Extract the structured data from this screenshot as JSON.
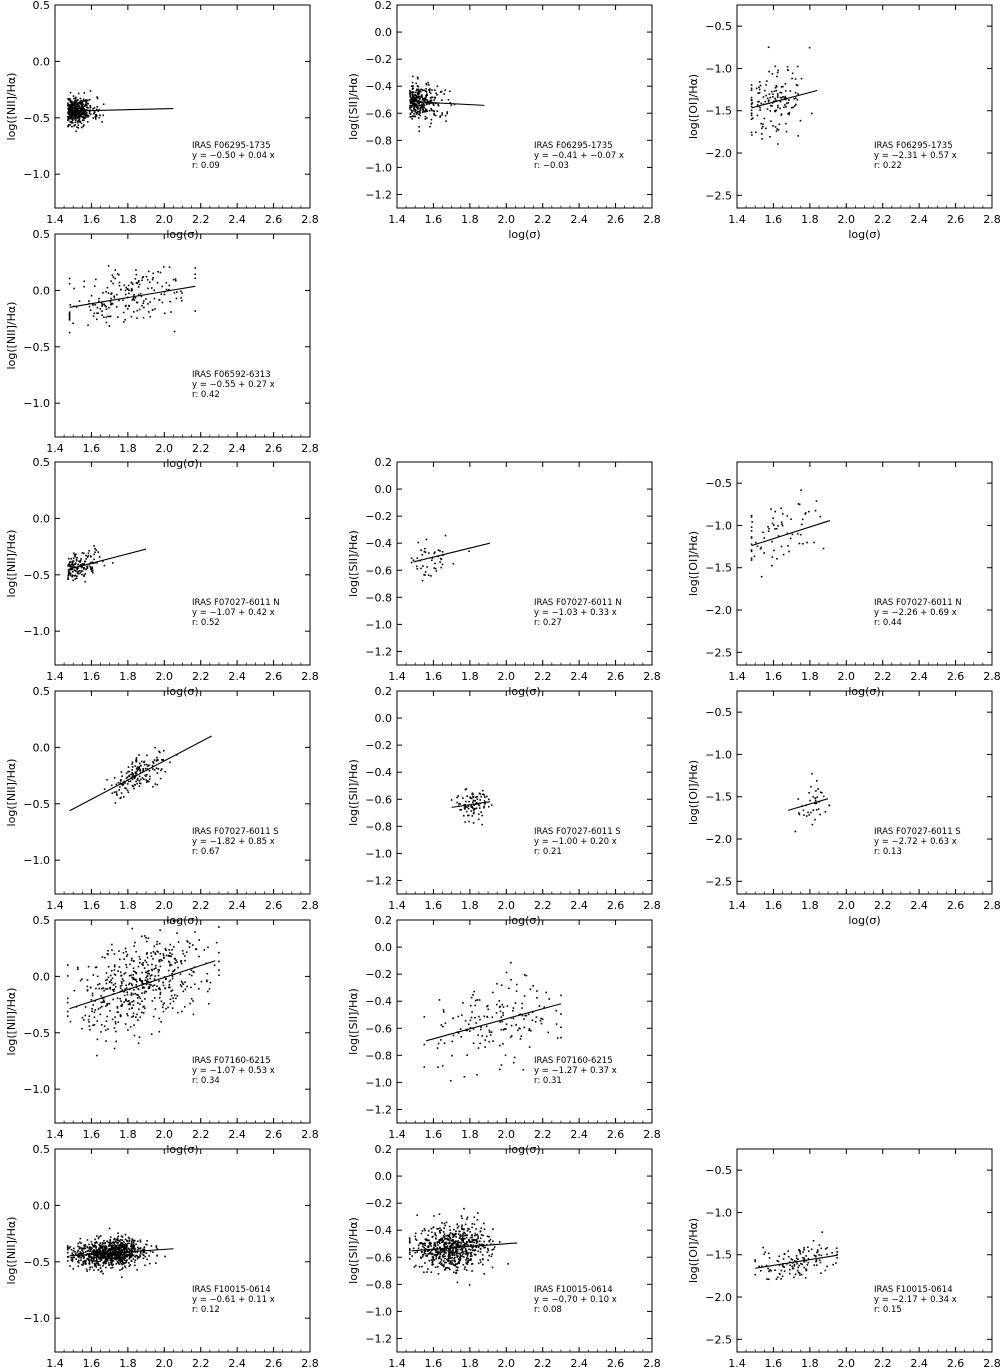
{
  "figure": {
    "axis_labels": {
      "x": "log(σ)",
      "y_nii": "log([NII]/Hα)",
      "y_sii": "log([SII]/Hα)",
      "y_oi": "log([OI]/Hα)"
    },
    "colors": {
      "axes": "#000000",
      "points": "#000000",
      "background": "#ffffff"
    }
  },
  "chart_data": [
    {
      "type": "scatter",
      "row": 0,
      "col": 0,
      "ylabel": "log([NII]/Hα)",
      "xlabel": "log(σ)",
      "xlim": [
        1.4,
        2.8
      ],
      "ylim": [
        -1.3,
        0.5
      ],
      "yticks": [
        0.5,
        0.0,
        -0.5,
        -1.0
      ],
      "xticks": [
        1.4,
        1.6,
        1.8,
        2.0,
        2.2,
        2.4,
        2.6,
        2.8
      ],
      "name": "IRAS F06295-1735",
      "fit": {
        "intercept": -0.5,
        "slope": 0.04,
        "r": 0.09,
        "x_range": [
          1.49,
          2.05
        ]
      },
      "annotation": [
        "IRAS F06295-1735",
        "y =  −0.50 +  0.04  x",
        "r:   0.09"
      ],
      "points": {
        "n": 420,
        "x_mean": 1.55,
        "x_sd": 0.07,
        "x_min": 1.47,
        "x_max": 2.05,
        "y_sd": 0.06,
        "skew": true,
        "seed": 11
      }
    },
    {
      "type": "scatter",
      "row": 0,
      "col": 1,
      "ylabel": "log([SII]/Hα)",
      "xlabel": "log(σ)",
      "xlim": [
        1.4,
        2.8
      ],
      "ylim": [
        -1.3,
        0.2
      ],
      "yticks": [
        0.2,
        0.0,
        -0.2,
        -0.4,
        -0.6,
        -0.8,
        -1.0,
        -1.2
      ],
      "xticks": [
        1.4,
        1.6,
        1.8,
        2.0,
        2.2,
        2.4,
        2.6,
        2.8
      ],
      "name": "IRAS F06295-1735",
      "fit": {
        "intercept": -0.41,
        "slope": -0.07,
        "r": -0.03,
        "x_range": [
          1.48,
          1.88
        ]
      },
      "annotation": [
        "IRAS F06295-1735",
        "y =  −0.41 +  −0.07  x",
        "r:   −0.03"
      ],
      "points": {
        "n": 300,
        "x_mean": 1.56,
        "x_sd": 0.08,
        "x_min": 1.47,
        "x_max": 1.88,
        "y_sd": 0.07,
        "skew": true,
        "seed": 12
      }
    },
    {
      "type": "scatter",
      "row": 0,
      "col": 2,
      "ylabel": "log([OI]/Hα)",
      "xlabel": "log(σ)",
      "xlim": [
        1.4,
        2.8
      ],
      "ylim": [
        -2.65,
        -0.25
      ],
      "yticks": [
        -0.5,
        -1.0,
        -1.5,
        -2.0,
        -2.5
      ],
      "xticks": [
        1.4,
        1.6,
        1.8,
        2.0,
        2.2,
        2.4,
        2.6,
        2.8
      ],
      "name": "IRAS F06295-1735",
      "fit": {
        "intercept": -2.31,
        "slope": 0.57,
        "r": 0.22,
        "x_range": [
          1.48,
          1.84
        ]
      },
      "annotation": [
        "IRAS F06295-1735",
        "y =  −2.31 +  0.57  x",
        "r:   0.22"
      ],
      "points": {
        "n": 150,
        "x_mean": 1.6,
        "x_sd": 0.09,
        "x_min": 1.48,
        "x_max": 1.85,
        "y_sd": 0.2,
        "skew": false,
        "seed": 13
      }
    },
    {
      "type": "scatter",
      "row": 1,
      "col": 0,
      "ylabel": "log([NII]/Hα)",
      "xlabel": "log(σ)",
      "xlim": [
        1.4,
        2.8
      ],
      "ylim": [
        -1.3,
        0.5
      ],
      "yticks": [
        0.5,
        0.0,
        -0.5,
        -1.0
      ],
      "xticks": [
        1.4,
        1.6,
        1.8,
        2.0,
        2.2,
        2.4,
        2.6,
        2.8
      ],
      "name": "IRAS F06592-6313",
      "fit": {
        "intercept": -0.55,
        "slope": 0.27,
        "r": 0.42,
        "x_range": [
          1.48,
          2.17
        ]
      },
      "annotation": [
        "IRAS F06592-6313",
        "y =  −0.55 +  0.27  x",
        "r:   0.42"
      ],
      "points": {
        "n": 200,
        "x_mean": 1.8,
        "x_sd": 0.18,
        "x_min": 1.48,
        "x_max": 2.17,
        "y_sd": 0.12,
        "skew": false,
        "seed": 21
      }
    },
    {
      "type": "scatter",
      "row": 2,
      "col": 0,
      "ylabel": "log([NII]/Hα)",
      "xlabel": "log(σ)",
      "xlim": [
        1.4,
        2.8
      ],
      "ylim": [
        -1.3,
        0.5
      ],
      "yticks": [
        0.5,
        0.0,
        -0.5,
        -1.0
      ],
      "xticks": [
        1.4,
        1.6,
        1.8,
        2.0,
        2.2,
        2.4,
        2.6,
        2.8
      ],
      "name": "IRAS F07027-6011 N",
      "fit": {
        "intercept": -1.07,
        "slope": 0.42,
        "r": 0.52,
        "x_range": [
          1.48,
          1.9
        ]
      },
      "annotation": [
        "IRAS F07027-6011 N",
        "y =  −1.07 +  0.42  x",
        "r:   0.52"
      ],
      "points": {
        "n": 150,
        "x_mean": 1.58,
        "x_sd": 0.09,
        "x_min": 1.47,
        "x_max": 1.9,
        "y_sd": 0.06,
        "skew": true,
        "seed": 31
      }
    },
    {
      "type": "scatter",
      "row": 2,
      "col": 1,
      "ylabel": "log([SII]/Hα)",
      "xlabel": "log(σ)",
      "xlim": [
        1.4,
        2.8
      ],
      "ylim": [
        -1.3,
        0.2
      ],
      "yticks": [
        0.2,
        0.0,
        -0.2,
        -0.4,
        -0.6,
        -0.8,
        -1.0,
        -1.2
      ],
      "xticks": [
        1.4,
        1.6,
        1.8,
        2.0,
        2.2,
        2.4,
        2.6,
        2.8
      ],
      "name": "IRAS F07027-6011 N",
      "fit": {
        "intercept": -1.03,
        "slope": 0.33,
        "r": 0.27,
        "x_range": [
          1.49,
          1.91
        ]
      },
      "annotation": [
        "IRAS F07027-6011 N",
        "y =  −1.03 +  0.33  x",
        "r:   0.27"
      ],
      "points": {
        "n": 45,
        "x_mean": 1.58,
        "x_sd": 0.08,
        "x_min": 1.48,
        "x_max": 1.92,
        "y_sd": 0.07,
        "skew": false,
        "seed": 32
      }
    },
    {
      "type": "scatter",
      "row": 2,
      "col": 2,
      "ylabel": "log([OI]/Hα)",
      "xlabel": "log(σ)",
      "xlim": [
        1.4,
        2.8
      ],
      "ylim": [
        -2.65,
        -0.25
      ],
      "yticks": [
        -0.5,
        -1.0,
        -1.5,
        -2.0,
        -2.5
      ],
      "xticks": [
        1.4,
        1.6,
        1.8,
        2.0,
        2.2,
        2.4,
        2.6,
        2.8
      ],
      "name": "IRAS F07027-6011 N",
      "fit": {
        "intercept": -2.26,
        "slope": 0.69,
        "r": 0.44,
        "x_range": [
          1.48,
          1.91
        ]
      },
      "annotation": [
        "IRAS F07027-6011 N",
        "y =  −2.26 +  0.69  x",
        "r:   0.44"
      ],
      "points": {
        "n": 70,
        "x_mean": 1.62,
        "x_sd": 0.11,
        "x_min": 1.48,
        "x_max": 1.92,
        "y_sd": 0.18,
        "skew": false,
        "seed": 33
      }
    },
    {
      "type": "scatter",
      "row": 3,
      "col": 0,
      "ylabel": "log([NII]/Hα)",
      "xlabel": "log(σ)",
      "xlim": [
        1.4,
        2.8
      ],
      "ylim": [
        -1.3,
        0.5
      ],
      "yticks": [
        0.5,
        0.0,
        -0.5,
        -1.0
      ],
      "xticks": [
        1.4,
        1.6,
        1.8,
        2.0,
        2.2,
        2.4,
        2.6,
        2.8
      ],
      "name": "IRAS F07027-6011 S",
      "fit": {
        "intercept": -1.82,
        "slope": 0.85,
        "r": 0.67,
        "x_range": [
          1.48,
          2.26
        ]
      },
      "annotation": [
        "IRAS F07027-6011 S",
        "y =  −1.82 +  0.85  x",
        "r:   0.67"
      ],
      "points": {
        "n": 160,
        "x_mean": 1.86,
        "x_sd": 0.08,
        "x_min": 1.48,
        "x_max": 2.26,
        "y_sd": 0.07,
        "skew": false,
        "seed": 41
      }
    },
    {
      "type": "scatter",
      "row": 3,
      "col": 1,
      "ylabel": "log([SII]/Hα)",
      "xlabel": "log(σ)",
      "xlim": [
        1.4,
        2.8
      ],
      "ylim": [
        -1.3,
        0.2
      ],
      "yticks": [
        0.2,
        0.0,
        -0.2,
        -0.4,
        -0.6,
        -0.8,
        -1.0,
        -1.2
      ],
      "xticks": [
        1.4,
        1.6,
        1.8,
        2.0,
        2.2,
        2.4,
        2.6,
        2.8
      ],
      "name": "IRAS F07027-6011 S",
      "fit": {
        "intercept": -1.0,
        "slope": 0.2,
        "r": 0.21,
        "x_range": [
          1.7,
          1.91
        ]
      },
      "annotation": [
        "IRAS F07027-6011 S",
        "y =  −1.00 +  0.20  x",
        "r:   0.21"
      ],
      "points": {
        "n": 90,
        "x_mean": 1.81,
        "x_sd": 0.05,
        "x_min": 1.7,
        "x_max": 1.92,
        "y_sd": 0.06,
        "skew": false,
        "seed": 42
      }
    },
    {
      "type": "scatter",
      "row": 3,
      "col": 2,
      "ylabel": "log([OI]/Hα)",
      "xlabel": "log(σ)",
      "xlim": [
        1.4,
        2.8
      ],
      "ylim": [
        -2.65,
        -0.25
      ],
      "yticks": [
        -0.5,
        -1.0,
        -1.5,
        -2.0,
        -2.5
      ],
      "xticks": [
        1.4,
        1.6,
        1.8,
        2.0,
        2.2,
        2.4,
        2.6,
        2.8
      ],
      "name": "IRAS F07027-6011 S",
      "fit": {
        "intercept": -2.72,
        "slope": 0.63,
        "r": 0.13,
        "x_range": [
          1.68,
          1.9
        ]
      },
      "annotation": [
        "IRAS F07027-6011 S",
        "y =  −2.72 +  0.63  x",
        "r:   0.13"
      ],
      "points": {
        "n": 40,
        "x_mean": 1.8,
        "x_sd": 0.05,
        "x_min": 1.68,
        "x_max": 1.91,
        "y_sd": 0.15,
        "skew": false,
        "seed": 43
      }
    },
    {
      "type": "scatter",
      "row": 4,
      "col": 0,
      "ylabel": "log([NII]/Hα)",
      "xlabel": "log(σ)",
      "xlim": [
        1.4,
        2.8
      ],
      "ylim": [
        -1.3,
        0.5
      ],
      "yticks": [
        0.5,
        0.0,
        -0.5,
        -1.0
      ],
      "xticks": [
        1.4,
        1.6,
        1.8,
        2.0,
        2.2,
        2.4,
        2.6,
        2.8
      ],
      "name": "IRAS F07160-6215",
      "fit": {
        "intercept": -1.07,
        "slope": 0.53,
        "r": 0.34,
        "x_range": [
          1.48,
          2.28
        ]
      },
      "annotation": [
        "IRAS F07160-6215",
        "y =  −1.07 +  0.53  x",
        "r:   0.34"
      ],
      "points": {
        "n": 520,
        "x_mean": 1.88,
        "x_sd": 0.18,
        "x_min": 1.47,
        "x_max": 2.3,
        "y_sd": 0.2,
        "skew": false,
        "seed": 51
      }
    },
    {
      "type": "scatter",
      "row": 4,
      "col": 1,
      "ylabel": "log([SII]/Hα)",
      "xlabel": "log(σ)",
      "xlim": [
        1.4,
        2.8
      ],
      "ylim": [
        -1.3,
        0.2
      ],
      "yticks": [
        0.2,
        0.0,
        -0.2,
        -0.4,
        -0.6,
        -0.8,
        -1.0,
        -1.2
      ],
      "xticks": [
        1.4,
        1.6,
        1.8,
        2.0,
        2.2,
        2.4,
        2.6,
        2.8
      ],
      "name": "IRAS F07160-6215",
      "fit": {
        "intercept": -1.27,
        "slope": 0.37,
        "r": 0.31,
        "x_range": [
          1.56,
          2.3
        ]
      },
      "annotation": [
        "IRAS F07160-6215",
        "y =  −1.27 +  0.37  x",
        "r:   0.31"
      ],
      "points": {
        "n": 170,
        "x_mean": 1.95,
        "x_sd": 0.17,
        "x_min": 1.55,
        "x_max": 2.3,
        "y_sd": 0.17,
        "skew": false,
        "seed": 52
      }
    },
    {
      "type": "scatter",
      "row": 5,
      "col": 0,
      "ylabel": "log([NII]/Hα)",
      "xlabel": "log(σ)",
      "xlim": [
        1.4,
        2.8
      ],
      "ylim": [
        -1.3,
        0.5
      ],
      "yticks": [
        0.5,
        0.0,
        -0.5,
        -1.0
      ],
      "xticks": [
        1.4,
        1.6,
        1.8,
        2.0,
        2.2,
        2.4,
        2.6,
        2.8
      ],
      "name": "IRAS F10015-0614",
      "fit": {
        "intercept": -0.61,
        "slope": 0.11,
        "r": 0.12,
        "x_range": [
          1.48,
          2.05
        ]
      },
      "annotation": [
        "IRAS F10015-0614",
        "y =  −0.61 +  0.11  x",
        "r:   0.12"
      ],
      "points": {
        "n": 900,
        "x_mean": 1.7,
        "x_sd": 0.1,
        "x_min": 1.47,
        "x_max": 2.05,
        "y_sd": 0.06,
        "skew": false,
        "seed": 61
      }
    },
    {
      "type": "scatter",
      "row": 5,
      "col": 1,
      "ylabel": "log([SII]/Hα)",
      "xlabel": "log(σ)",
      "xlim": [
        1.4,
        2.8
      ],
      "ylim": [
        -1.3,
        0.2
      ],
      "yticks": [
        0.2,
        0.0,
        -0.2,
        -0.4,
        -0.6,
        -0.8,
        -1.0,
        -1.2
      ],
      "xticks": [
        1.4,
        1.6,
        1.8,
        2.0,
        2.2,
        2.4,
        2.6,
        2.8
      ],
      "name": "IRAS F10015-0614",
      "fit": {
        "intercept": -0.7,
        "slope": 0.1,
        "r": 0.08,
        "x_range": [
          1.48,
          2.06
        ]
      },
      "annotation": [
        "IRAS F10015-0614",
        "y =  −0.70 +  0.10  x",
        "r:   0.08"
      ],
      "points": {
        "n": 700,
        "x_mean": 1.7,
        "x_sd": 0.1,
        "x_min": 1.47,
        "x_max": 2.06,
        "y_sd": 0.08,
        "skew": false,
        "seed": 62
      }
    },
    {
      "type": "scatter",
      "row": 5,
      "col": 2,
      "ylabel": "log([OI]/Hα)",
      "xlabel": "log(σ)",
      "xlim": [
        1.4,
        2.8
      ],
      "ylim": [
        -2.65,
        -0.25
      ],
      "yticks": [
        -0.5,
        -1.0,
        -1.5,
        -2.0,
        -2.5
      ],
      "xticks": [
        1.4,
        1.6,
        1.8,
        2.0,
        2.2,
        2.4,
        2.6,
        2.8
      ],
      "name": "IRAS F10015-0614",
      "fit": {
        "intercept": -2.17,
        "slope": 0.34,
        "r": 0.15,
        "x_range": [
          1.5,
          1.95
        ]
      },
      "annotation": [
        "IRAS F10015-0614",
        "y =  −2.17 +  0.34  x",
        "r:   0.15"
      ],
      "points": {
        "n": 130,
        "x_mean": 1.73,
        "x_sd": 0.1,
        "x_min": 1.5,
        "x_max": 1.95,
        "y_sd": 0.1,
        "skew": false,
        "seed": 63
      }
    }
  ]
}
